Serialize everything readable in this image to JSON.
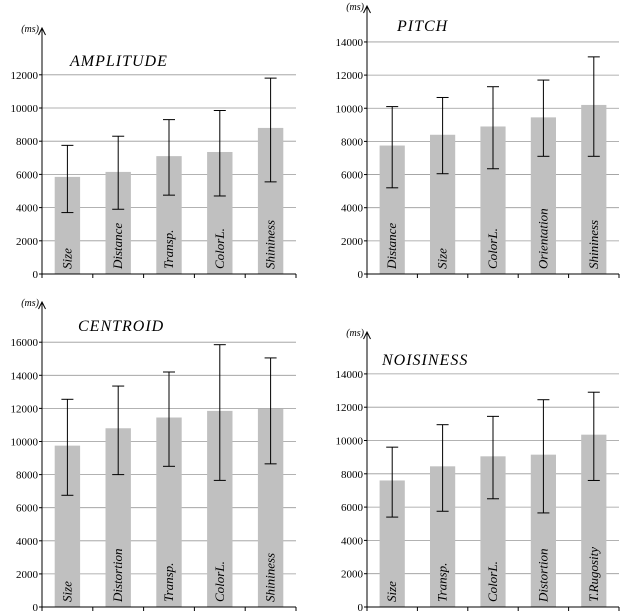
{
  "chart_data": [
    {
      "type": "bar",
      "title": "AMPLITUDE",
      "unit": "(ms)",
      "categories": [
        "Size",
        "Distance",
        "Transp.",
        "ColorL.",
        "Shininess"
      ],
      "values": [
        5850,
        6150,
        7100,
        7350,
        8800
      ],
      "error_low": [
        3700,
        3900,
        4750,
        4700,
        5550
      ],
      "error_high": [
        7750,
        8300,
        9300,
        9850,
        11800
      ],
      "ylim": [
        0,
        14000
      ],
      "yticks": [
        0,
        2000,
        4000,
        6000,
        8000,
        10000,
        12000
      ],
      "grid": true,
      "bar_color": "#c0c0c0"
    },
    {
      "type": "bar",
      "title": "PITCH",
      "unit": "(ms)",
      "categories": [
        "Distance",
        "Size",
        "ColorL.",
        "Orientation",
        "Shininess"
      ],
      "values": [
        7750,
        8400,
        8900,
        9450,
        10200
      ],
      "error_low": [
        5200,
        6050,
        6350,
        7100,
        7100
      ],
      "error_high": [
        10100,
        10650,
        11300,
        11700,
        13100
      ],
      "ylim": [
        0,
        16000
      ],
      "yticks": [
        0,
        2000,
        4000,
        6000,
        8000,
        10000,
        12000,
        14000
      ],
      "grid": true,
      "bar_color": "#c0c0c0"
    },
    {
      "type": "bar",
      "title": "CENTROID",
      "unit": "(ms)",
      "categories": [
        "Size",
        "Distortion",
        "Transp.",
        "ColorL.",
        "Shininess"
      ],
      "values": [
        9750,
        10800,
        11450,
        11850,
        12000
      ],
      "error_low": [
        6750,
        8000,
        8500,
        7650,
        8650
      ],
      "error_high": [
        12550,
        13350,
        14200,
        15850,
        15050
      ],
      "ylim": [
        0,
        18000
      ],
      "yticks": [
        0,
        2000,
        4000,
        6000,
        8000,
        10000,
        12000,
        14000,
        16000
      ],
      "grid": true,
      "bar_color": "#c0c0c0"
    },
    {
      "type": "bar",
      "title": "NOISINESS",
      "unit": "(ms)",
      "categories": [
        "Size",
        "Transp.",
        "ColorL.",
        "Distortion",
        "T.Rugosity"
      ],
      "values": [
        7600,
        8450,
        9050,
        9150,
        10350
      ],
      "error_low": [
        5400,
        5750,
        6500,
        5650,
        7600
      ],
      "error_high": [
        9600,
        10950,
        11450,
        12450,
        12900
      ],
      "ylim": [
        0,
        16000
      ],
      "yticks": [
        0,
        2000,
        4000,
        6000,
        8000,
        10000,
        12000,
        14000
      ],
      "grid": true,
      "bar_color": "#c0c0c0"
    }
  ]
}
